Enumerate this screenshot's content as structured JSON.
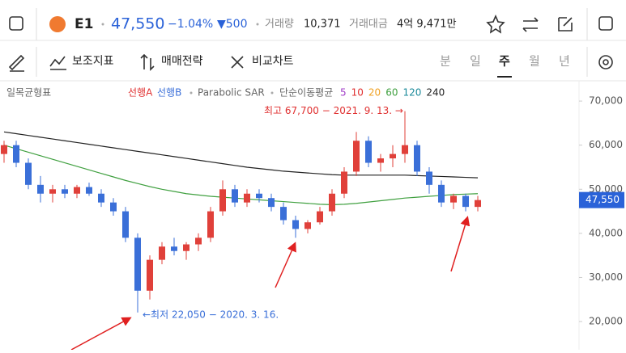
{
  "header": {
    "symbol": "E1",
    "price": "47,550",
    "change_pct": "−1.04%",
    "change": "▼500",
    "volume_label": "거래량",
    "volume": "10,371",
    "amount_label": "거래대금",
    "amount": "4억 9,471만"
  },
  "toolbar": {
    "indicators": "보조지표",
    "strategy": "매매전략",
    "compare": "비교차트",
    "periods": [
      "분",
      "일",
      "주",
      "월",
      "년"
    ]
  },
  "chart_data": {
    "type": "candlestick",
    "legend": {
      "ichimoku": "일목균형표",
      "span_a": "선행A",
      "span_b": "선행B",
      "psar": "Parabolic SAR",
      "sma": "단순이동평균",
      "ma": [
        {
          "label": "5",
          "color": "#a03cc8"
        },
        {
          "label": "10",
          "color": "#e03030"
        },
        {
          "label": "20",
          "color": "#f0a020"
        },
        {
          "label": "60",
          "color": "#40a040"
        },
        {
          "label": "120",
          "color": "#1a8a9a"
        },
        {
          "label": "240",
          "color": "#222222"
        }
      ]
    },
    "categories": [
      null,
      null,
      null,
      null,
      null,
      null,
      null,
      null,
      null,
      null,
      null,
      null,
      null,
      null,
      null,
      null,
      null,
      null,
      null,
      null,
      null,
      null,
      null,
      null,
      null,
      null,
      null,
      null,
      null,
      null,
      null,
      null,
      null,
      null,
      null,
      null,
      null,
      null,
      null,
      null
    ],
    "open": [
      58000,
      60000,
      56000,
      51000,
      49000,
      50000,
      49000,
      50500,
      49000,
      47000,
      45000,
      39000,
      27000,
      34000,
      37000,
      36000,
      37500,
      39000,
      45000,
      50000,
      47000,
      49000,
      48000,
      46000,
      43000,
      41000,
      42500,
      45000,
      49000,
      54000,
      61000,
      56000,
      57000,
      58000,
      60000,
      54000,
      51000,
      47000,
      48500,
      46000
    ],
    "high": [
      61000,
      61000,
      57000,
      53000,
      51000,
      51000,
      51000,
      51500,
      50000,
      48000,
      46000,
      40000,
      35000,
      38000,
      39000,
      38000,
      40000,
      46000,
      52000,
      51000,
      50000,
      50000,
      49000,
      47000,
      44000,
      43000,
      46000,
      50000,
      55000,
      63000,
      62000,
      58000,
      60000,
      67700,
      61000,
      55000,
      52000,
      49000,
      49000,
      48500
    ],
    "low": [
      56000,
      55000,
      50000,
      47000,
      47000,
      48000,
      48000,
      48500,
      46000,
      44000,
      38000,
      22050,
      25000,
      33000,
      35000,
      34000,
      36000,
      38000,
      44000,
      46000,
      46000,
      47000,
      45000,
      42000,
      39000,
      40000,
      42000,
      44000,
      48000,
      53000,
      55000,
      54000,
      55000,
      56000,
      53000,
      49000,
      46000,
      45500,
      45000,
      45000
    ],
    "close": [
      60000,
      56000,
      51000,
      49000,
      50000,
      49000,
      50500,
      49000,
      47000,
      45000,
      39000,
      27000,
      34000,
      37000,
      36000,
      37500,
      39000,
      45000,
      50000,
      47000,
      49000,
      48000,
      46000,
      43000,
      41000,
      42500,
      45000,
      49000,
      54000,
      61000,
      56000,
      57000,
      58000,
      60000,
      54000,
      51000,
      47000,
      48500,
      46000,
      47550
    ],
    "up_color": "#e0403a",
    "down_color": "#3a6fd8",
    "series": [
      {
        "color": "#222222",
        "values": [
          63000,
          62600,
          62200,
          61800,
          61400,
          61000,
          60600,
          60200,
          59800,
          59400,
          59000,
          58600,
          58200,
          57800,
          57400,
          57000,
          56600,
          56200,
          55800,
          55400,
          55000,
          54700,
          54400,
          54100,
          53900,
          53700,
          53500,
          53300,
          53200,
          53200,
          53200,
          53200,
          53200,
          53200,
          53100,
          53000,
          52900,
          52800,
          52700,
          52600
        ]
      },
      {
        "color": "#40a040",
        "values": [
          60000,
          59200,
          58400,
          57600,
          56800,
          56000,
          55200,
          54400,
          53600,
          52800,
          52000,
          51300,
          50600,
          50000,
          49500,
          49000,
          48700,
          48400,
          48200,
          48000,
          47800,
          47600,
          47400,
          47200,
          47000,
          46800,
          46600,
          46500,
          46600,
          46800,
          47100,
          47400,
          47700,
          48000,
          48200,
          48400,
          48600,
          48800,
          48900,
          49000
        ]
      }
    ],
    "ylim": [
      13600,
      74600
    ],
    "yticks": [
      {
        "value": 20000,
        "label": "20,000"
      },
      {
        "value": 30000,
        "label": "30,000"
      },
      {
        "value": 40000,
        "label": "40,000"
      },
      {
        "value": 50000,
        "label": "50,000"
      },
      {
        "value": 60000,
        "label": "60,000"
      },
      {
        "value": 70000,
        "label": "70,000"
      }
    ],
    "last_price": {
      "value": 47550,
      "label": "47,550"
    },
    "annotations": [
      {
        "text": "최고 67,700 − 2021. 9. 13. →",
        "value": 67700
      },
      {
        "text": "←최저 22,050 − 2020. 3. 16.",
        "value": 22050
      }
    ]
  }
}
